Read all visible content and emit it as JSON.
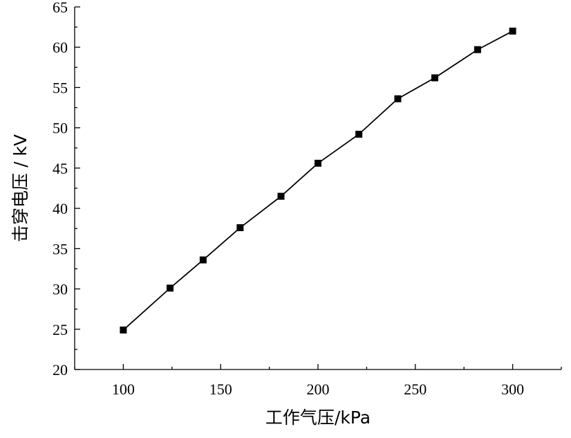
{
  "chart_data": {
    "type": "line",
    "title": "",
    "xlabel": "工作气压/kPa",
    "ylabel": "击穿电压 / kV",
    "xlim": [
      75,
      325
    ],
    "ylim": [
      20,
      65
    ],
    "xticks": [
      100,
      150,
      200,
      250,
      300
    ],
    "yticks": [
      20,
      25,
      30,
      35,
      40,
      45,
      50,
      55,
      60,
      65
    ],
    "grid": false,
    "legend": "none",
    "marker": "square",
    "color": "#000000",
    "series": [
      {
        "x": [
          100,
          124,
          141,
          160,
          181,
          200,
          221,
          241,
          260,
          282,
          300
        ],
        "y": [
          24.9,
          30.1,
          33.6,
          37.6,
          41.5,
          45.6,
          49.2,
          53.6,
          56.2,
          59.7,
          62.0
        ]
      }
    ]
  }
}
